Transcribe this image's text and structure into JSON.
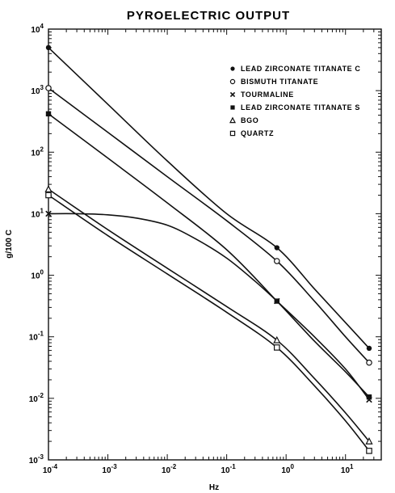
{
  "chart_data": {
    "type": "line",
    "title": "PYROELECTRIC OUTPUT",
    "xlabel": "Hz",
    "ylabel": "g/100 C",
    "x_scale": "log",
    "y_scale": "log",
    "xlim": [
      0.0001,
      40
    ],
    "ylim": [
      0.001,
      10000
    ],
    "x_ticks": [
      {
        "value": 0.0001,
        "base": "10",
        "exp": "-4"
      },
      {
        "value": 0.001,
        "base": "10",
        "exp": "-3"
      },
      {
        "value": 0.01,
        "base": "10",
        "exp": "-2"
      },
      {
        "value": 0.1,
        "base": "10",
        "exp": "-1"
      },
      {
        "value": 1,
        "base": "10",
        "exp": "0"
      },
      {
        "value": 10,
        "base": "10",
        "exp": "1"
      }
    ],
    "y_ticks": [
      {
        "value": 0.001,
        "base": "10",
        "exp": "-3"
      },
      {
        "value": 0.01,
        "base": "10",
        "exp": "-2"
      },
      {
        "value": 0.1,
        "base": "10",
        "exp": "-1"
      },
      {
        "value": 1,
        "base": "10",
        "exp": "0"
      },
      {
        "value": 10,
        "base": "10",
        "exp": "1"
      },
      {
        "value": 100,
        "base": "10",
        "exp": "2"
      },
      {
        "value": 1000,
        "base": "10",
        "exp": "3"
      },
      {
        "value": 10000,
        "base": "10",
        "exp": "4"
      }
    ],
    "grid": false,
    "legend_position": "top-right",
    "series": [
      {
        "name": "LEAD ZIRCONATE TITANATE C",
        "marker": "filled-circle",
        "x": [
          0.0001,
          0.7,
          25
        ],
        "y": [
          5000,
          2.8,
          0.065
        ]
      },
      {
        "name": "BISMUTH TITANATE",
        "marker": "open-circle",
        "x": [
          0.0001,
          0.7,
          25
        ],
        "y": [
          1100,
          1.7,
          0.038
        ]
      },
      {
        "name": "TOURMALINE",
        "marker": "cross",
        "x": [
          0.0001,
          0.7,
          25
        ],
        "y": [
          10,
          0.38,
          0.0095
        ]
      },
      {
        "name": "LEAD ZIRCONATE TITANATE S",
        "marker": "filled-square",
        "x": [
          0.0001,
          0.7,
          25
        ],
        "y": [
          420,
          0.38,
          0.0105
        ]
      },
      {
        "name": "BGO",
        "marker": "open-triangle",
        "x": [
          0.0001,
          0.7,
          25
        ],
        "y": [
          25,
          0.088,
          0.002
        ]
      },
      {
        "name": "QUARTZ",
        "marker": "open-square",
        "x": [
          0.0001,
          0.7,
          25
        ],
        "y": [
          20,
          0.067,
          0.0014
        ]
      }
    ],
    "curves": [
      {
        "series": 0,
        "x": [
          0.0001,
          0.001,
          0.01,
          0.1,
          0.7,
          3,
          10,
          25
        ],
        "y": [
          5000,
          600,
          72,
          10,
          2.8,
          0.6,
          0.17,
          0.065
        ]
      },
      {
        "series": 1,
        "x": [
          0.0001,
          0.001,
          0.01,
          0.1,
          0.7,
          3,
          10,
          25
        ],
        "y": [
          1100,
          210,
          40,
          7.7,
          1.7,
          0.38,
          0.1,
          0.038
        ]
      },
      {
        "series": 2,
        "x": [
          0.0001,
          0.0003,
          0.001,
          0.003,
          0.01,
          0.03,
          0.1,
          0.3,
          0.7,
          3,
          10,
          25
        ],
        "y": [
          10,
          10,
          9.6,
          8.5,
          6.5,
          3.9,
          1.9,
          0.8,
          0.38,
          0.1,
          0.03,
          0.0095
        ]
      },
      {
        "series": 3,
        "x": [
          0.0001,
          0.001,
          0.01,
          0.1,
          0.7,
          3,
          10,
          25
        ],
        "y": [
          420,
          80,
          15,
          2.6,
          0.38,
          0.085,
          0.027,
          0.0105
        ]
      },
      {
        "series": 4,
        "x": [
          0.0001,
          0.001,
          0.01,
          0.1,
          0.7,
          3,
          10,
          25
        ],
        "y": [
          25,
          5.5,
          1.3,
          0.31,
          0.088,
          0.021,
          0.0058,
          0.002
        ]
      },
      {
        "series": 5,
        "x": [
          0.0001,
          0.001,
          0.01,
          0.1,
          0.7,
          3,
          10,
          25
        ],
        "y": [
          20,
          4.4,
          1.05,
          0.25,
          0.067,
          0.016,
          0.0043,
          0.0014
        ]
      }
    ]
  }
}
